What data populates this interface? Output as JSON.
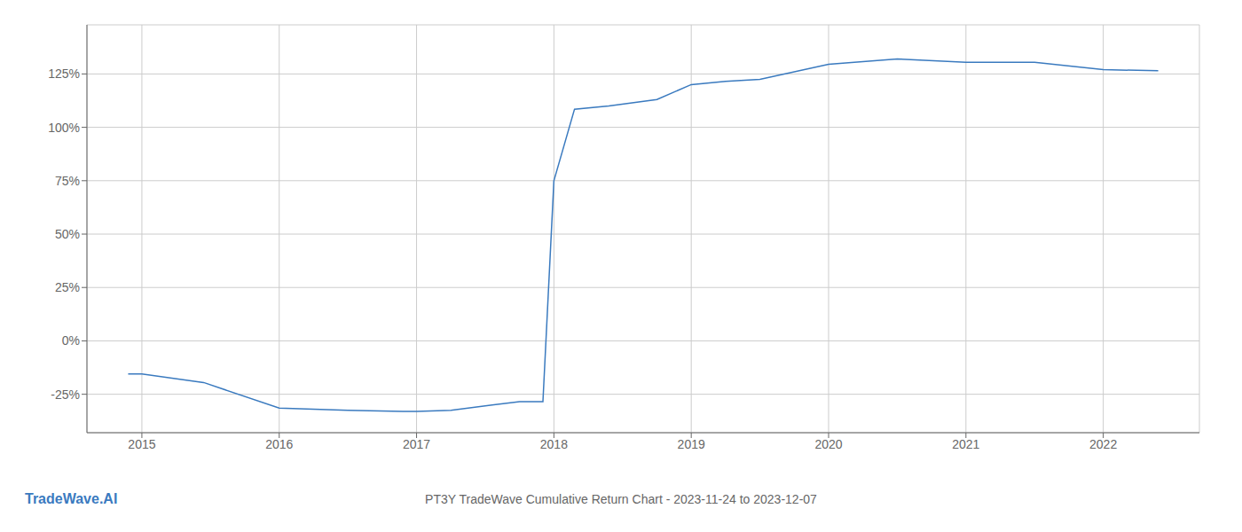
{
  "chart_data": {
    "type": "line",
    "title": "PT3Y TradeWave Cumulative Return Chart - 2023-11-24 to 2023-12-07",
    "annotations": [
      "TradeWave.AI"
    ],
    "x": [
      2014.9,
      2015.0,
      2015.45,
      2016.0,
      2016.5,
      2016.9,
      2017.0,
      2017.25,
      2017.55,
      2017.75,
      2017.92,
      2018.0,
      2018.15,
      2018.4,
      2018.75,
      2019.0,
      2019.25,
      2019.5,
      2020.0,
      2020.5,
      2021.0,
      2021.5,
      2022.0,
      2022.4
    ],
    "values": [
      -0.155,
      -0.155,
      -0.195,
      -0.315,
      -0.325,
      -0.33,
      -0.33,
      -0.325,
      -0.3,
      -0.285,
      -0.285,
      0.75,
      1.085,
      1.1,
      1.13,
      1.2,
      1.215,
      1.225,
      1.295,
      1.32,
      1.305,
      1.305,
      1.27,
      1.265
    ],
    "color": "#3a7abf",
    "xlim": [
      2014.6,
      2022.7
    ],
    "ylim": [
      -0.43,
      1.48
    ],
    "xticks": [
      2015,
      2016,
      2017,
      2018,
      2019,
      2020,
      2021,
      2022
    ],
    "yticks": [
      {
        "value": -0.25,
        "label": "-25%"
      },
      {
        "value": 0.0,
        "label": "0%"
      },
      {
        "value": 0.25,
        "label": "25%"
      },
      {
        "value": 0.5,
        "label": "50%"
      },
      {
        "value": 0.75,
        "label": "75%"
      },
      {
        "value": 1.0,
        "label": "100%"
      },
      {
        "value": 1.25,
        "label": "125%"
      }
    ],
    "grid": true
  }
}
